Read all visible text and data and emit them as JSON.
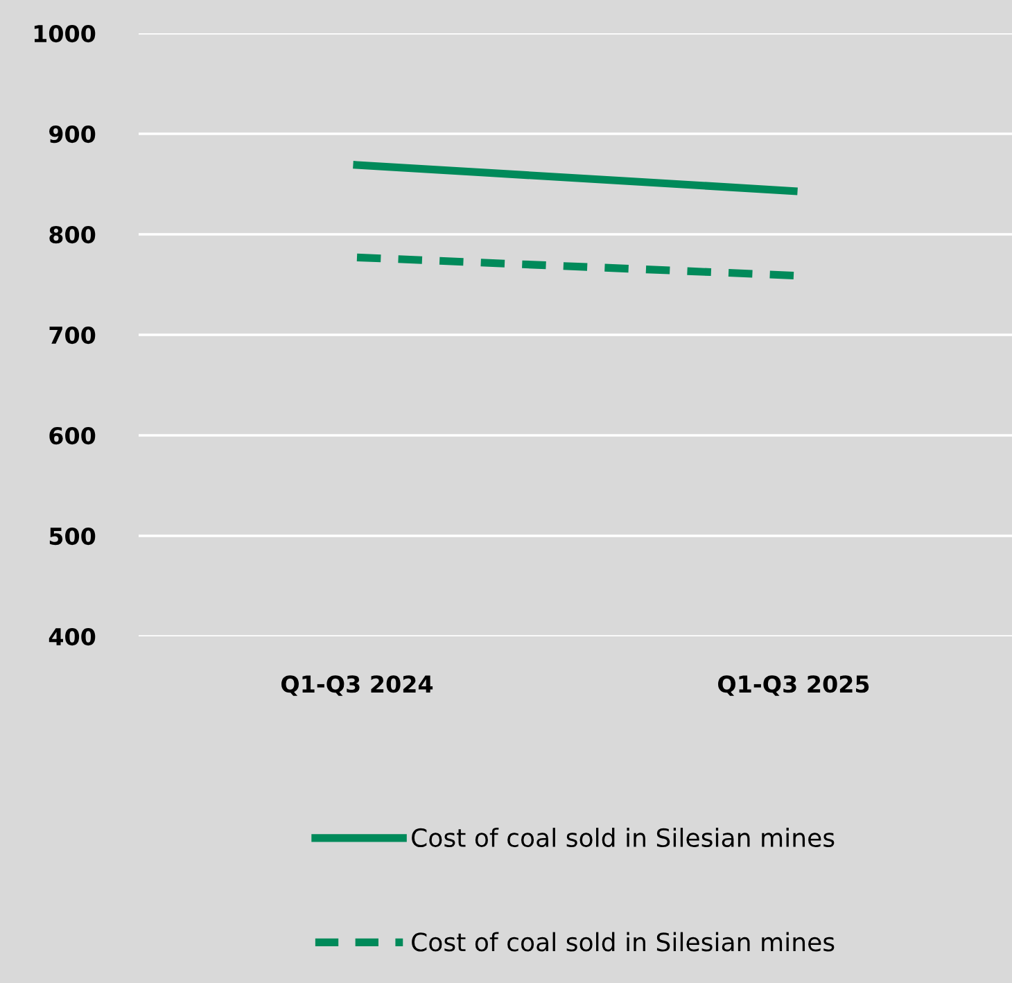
{
  "chart_data": {
    "type": "line",
    "categories": [
      "Q1-Q3 2024",
      "Q1-Q3 2025"
    ],
    "series": [
      {
        "name": "Cost of coal sold in Silesian mines",
        "color": "#008a5a",
        "values": [
          869,
          843
        ],
        "line_style": "solid"
      },
      {
        "name": "Cost of coal sold in Silesian mines",
        "color": "#008a5a",
        "values": [
          777,
          759
        ],
        "line_style": "dashed"
      }
    ],
    "ylim": [
      400,
      1000
    ],
    "yticks": [
      400,
      500,
      600,
      700,
      800,
      900,
      1000
    ],
    "grid": "y",
    "legend": "bottom",
    "marker": "none"
  }
}
